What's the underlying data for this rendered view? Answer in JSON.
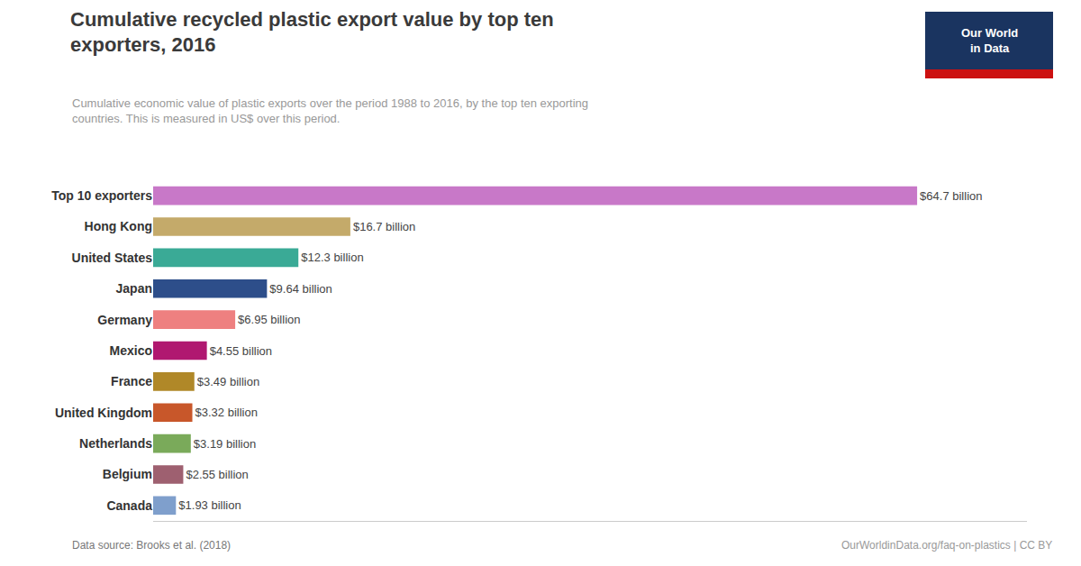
{
  "chart_data": {
    "type": "bar",
    "orientation": "horizontal",
    "title": "Cumulative recycled plastic export value by top ten\nexporters, 2016",
    "subtitle": "Cumulative economic value of plastic exports over the period 1988 to 2016, by the top ten exporting\ncountries. This is measured in US$ over this period.",
    "categories": [
      "Canada",
      "Belgium",
      "Netherlands",
      "United Kingdom",
      "France",
      "Mexico",
      "Germany",
      "Japan",
      "United States",
      "Hong Kong",
      "Top 10 exporters"
    ],
    "values": [
      1.93,
      2.55,
      3.19,
      3.32,
      3.49,
      4.55,
      6.95,
      9.64,
      12.3,
      16.7,
      64.7
    ],
    "value_labels": [
      "$1.93 billion",
      "$2.55 billion",
      "$3.19 billion",
      "$3.32 billion",
      "$3.49 billion",
      "$4.55 billion",
      "$6.95 billion",
      "$9.64 billion",
      "$12.3 billion",
      "$16.7 billion",
      "$64.7 billion"
    ],
    "colors": [
      "#7f9fcc",
      "#9e6070",
      "#7aaa5a",
      "#c8572a",
      "#b08828",
      "#b01870",
      "#ee8080",
      "#2d4e8a",
      "#3aaa96",
      "#c4aa6a",
      "#c878c8"
    ],
    "data_labels": true,
    "xlim": [
      0,
      74
    ],
    "tick_labels": "y",
    "grid": false,
    "annotations": [
      "Data source: Brooks et al. (2018)",
      "OurWorldinData.org/faq-on-plastics | CC BY",
      "Our World\nin Data"
    ]
  }
}
